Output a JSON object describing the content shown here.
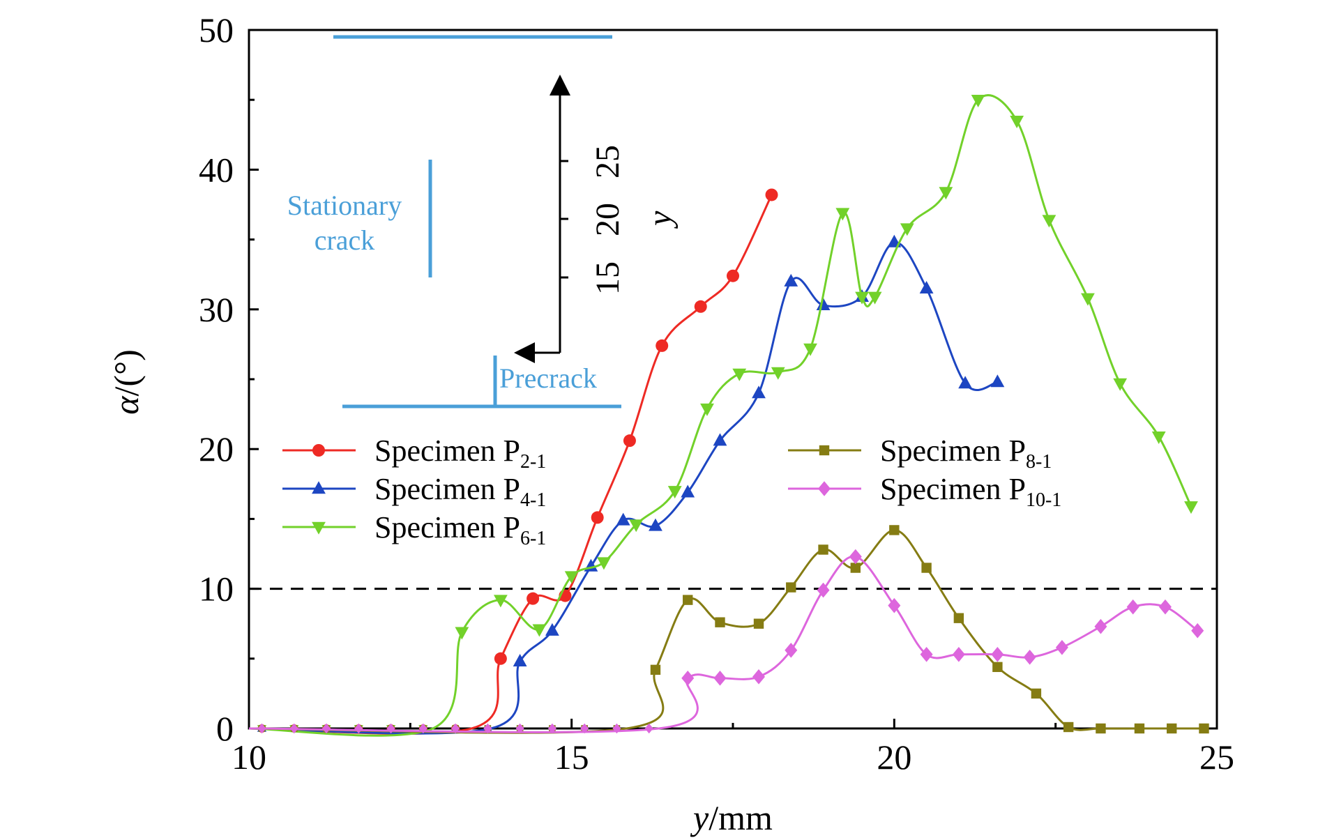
{
  "chart_data": {
    "type": "line",
    "xlabel_italic": "y",
    "xlabel_unit": "/mm",
    "ylabel_italic": "α",
    "ylabel_unit": "/(°)",
    "xlim": [
      10,
      25
    ],
    "ylim": [
      0,
      50
    ],
    "x_ticks": [
      "10",
      "15",
      "20",
      "25"
    ],
    "y_ticks": [
      "0",
      "10",
      "20",
      "30",
      "40",
      "50"
    ],
    "reference_line": {
      "y": 10,
      "style": "dashed",
      "color": "#000000"
    },
    "series": [
      {
        "name_prefix": "Specimen P",
        "name_sub": "2-1",
        "color": "#ee2a24",
        "marker": "circle",
        "x": [
          13.9,
          14.4,
          14.9,
          15.4,
          15.9,
          16.4,
          17.0,
          17.5,
          18.1
        ],
        "y": [
          5.0,
          9.3,
          9.5,
          15.1,
          20.6,
          27.4,
          30.2,
          32.4,
          38.2
        ]
      },
      {
        "name_prefix": "Specimen P",
        "name_sub": "4-1",
        "color": "#1d46c2",
        "marker": "triangle-up",
        "x": [
          14.2,
          14.7,
          15.3,
          15.8,
          16.3,
          16.8,
          17.3,
          17.9,
          18.4,
          18.9,
          19.5,
          20.0,
          20.5,
          21.1,
          21.6
        ],
        "y": [
          4.8,
          7.0,
          11.6,
          14.9,
          14.5,
          16.9,
          20.6,
          24.0,
          32.0,
          30.3,
          30.9,
          34.8,
          31.5,
          24.7,
          24.8
        ]
      },
      {
        "name_prefix": "Specimen P",
        "name_sub": "6-1",
        "color": "#72d12a",
        "marker": "triangle-down",
        "x": [
          13.3,
          13.9,
          14.5,
          15.0,
          15.5,
          16.0,
          16.6,
          17.1,
          17.6,
          18.2,
          18.7,
          19.2,
          19.5,
          19.7,
          20.2,
          20.8,
          21.3,
          21.9,
          22.4,
          23.0,
          23.5,
          24.1,
          24.6
        ],
        "y": [
          6.9,
          9.2,
          7.1,
          10.9,
          11.9,
          14.6,
          17.0,
          22.9,
          25.4,
          25.5,
          27.2,
          36.9,
          30.9,
          30.9,
          35.8,
          38.4,
          45.0,
          43.5,
          36.4,
          30.8,
          24.7,
          20.9,
          15.9
        ]
      },
      {
        "name_prefix": "Specimen P",
        "name_sub": "8-1",
        "color": "#857c13",
        "marker": "square",
        "x": [
          16.3,
          16.8,
          17.3,
          17.9,
          18.4,
          18.9,
          19.4,
          20.0,
          20.5,
          21.0,
          21.6,
          22.2,
          22.7,
          23.2,
          23.8,
          24.3,
          24.8
        ],
        "y": [
          4.2,
          9.2,
          7.6,
          7.5,
          10.1,
          12.8,
          11.5,
          14.2,
          11.5,
          7.9,
          4.4,
          2.5,
          0.1,
          0.0,
          0.0,
          0.0,
          0.0
        ]
      },
      {
        "name_prefix": "Specimen P",
        "name_sub": "10-1",
        "color": "#dd66dd",
        "marker": "diamond",
        "x": [
          16.8,
          17.3,
          17.9,
          18.4,
          18.9,
          19.4,
          20.0,
          20.5,
          21.0,
          21.6,
          22.1,
          22.6,
          23.2,
          23.7,
          24.2,
          24.7
        ],
        "y": [
          3.6,
          3.6,
          3.7,
          5.6,
          9.9,
          12.3,
          8.8,
          5.3,
          5.3,
          5.3,
          5.1,
          5.8,
          7.3,
          8.7,
          8.7,
          7.0
        ]
      }
    ],
    "legend": {
      "placement": "center-left, two columns"
    }
  },
  "inset": {
    "stationary_label_line1": "Stationary",
    "stationary_label_line2": "crack",
    "precrack_label": "Precrack",
    "axis_label": "y",
    "axis_ticks": [
      "15",
      "20",
      "25"
    ],
    "color": "#4a9fd8"
  }
}
